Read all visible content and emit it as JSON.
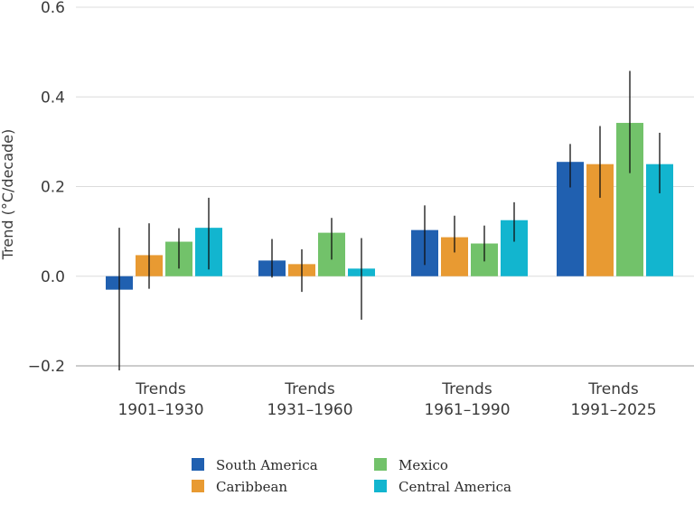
{
  "chart_data": {
    "type": "bar",
    "ylabel": "Trend (°C/decade)",
    "ylim": [
      -0.2,
      0.6
    ],
    "yticks": [
      "−0.2",
      "0.0",
      "0.2",
      "0.4",
      "0.6"
    ],
    "ytick_values": [
      -0.2,
      0.0,
      0.2,
      0.4,
      0.6
    ],
    "grid": true,
    "legend": "bottom",
    "categories": [
      [
        "Trends",
        "1901–1930"
      ],
      [
        "Trends",
        "1931–1960"
      ],
      [
        "Trends",
        "1961–1990"
      ],
      [
        "Trends",
        "1991–2025"
      ]
    ],
    "series": [
      {
        "name": "South America",
        "color": "#2060b0",
        "values": [
          -0.03,
          0.035,
          0.103,
          0.255
        ],
        "err_low": [
          -0.21,
          -0.003,
          0.025,
          0.198
        ],
        "err_high": [
          0.108,
          0.083,
          0.158,
          0.295
        ]
      },
      {
        "name": "Caribbean",
        "color": "#e89a32",
        "values": [
          0.047,
          0.027,
          0.087,
          0.25
        ],
        "err_low": [
          -0.028,
          -0.035,
          0.053,
          0.175
        ],
        "err_high": [
          0.118,
          0.06,
          0.135,
          0.335
        ]
      },
      {
        "name": "Mexico",
        "color": "#72c26a",
        "values": [
          0.077,
          0.097,
          0.073,
          0.342
        ],
        "err_low": [
          0.017,
          0.037,
          0.033,
          0.23
        ],
        "err_high": [
          0.107,
          0.13,
          0.113,
          0.458
        ]
      },
      {
        "name": "Central America",
        "color": "#12b5cf",
        "values": [
          0.108,
          0.017,
          0.125,
          0.25
        ],
        "err_low": [
          0.015,
          -0.097,
          0.077,
          0.185
        ],
        "err_high": [
          0.175,
          0.085,
          0.165,
          0.32
        ]
      }
    ]
  }
}
